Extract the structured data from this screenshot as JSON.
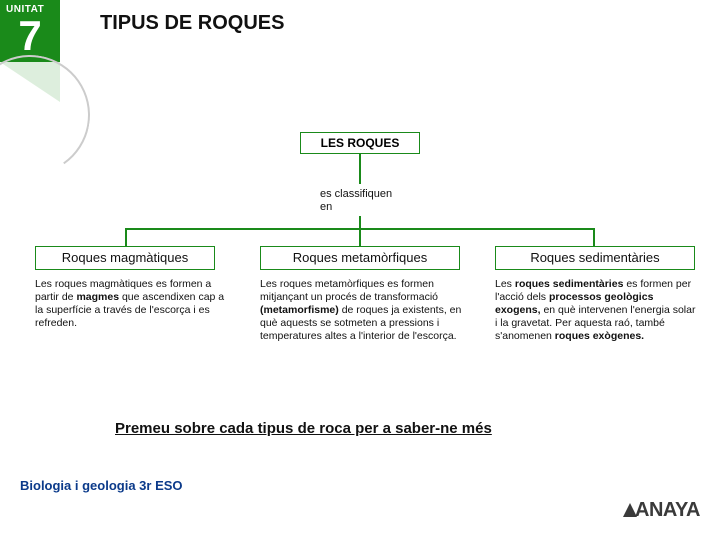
{
  "header": {
    "unit_label": "UNITAT",
    "unit_number": "7",
    "title": "TIPUS DE ROQUES"
  },
  "diagram": {
    "root_label": "LES ROQUES",
    "connector_text": "es classifiquen\nen",
    "colors": {
      "line": "#1a8a1a",
      "box_border": "#1a8a1a",
      "box_bg": "#ffffff"
    },
    "categories": [
      {
        "title": "Roques magmàtiques",
        "desc_html": "Les roques magmàtiques es formen a partir de <b>magmes</b> que ascendixen cap a la superfície a través de l'escorça i es refreden."
      },
      {
        "title": "Roques metamòrfiques",
        "desc_html": "Les roques metamòrfiques es formen mitjançant un procés de transformació <b>(metamorfisme)</b> de roques ja existents, en què aquests se sotmeten a pressions i temperatures altes a l'interior de l'escorça."
      },
      {
        "title": "Roques sedimentàries",
        "desc_html": "Les <b>roques sedimentàries</b> es formen per l'acció dels <b>processos geològics exogens,</b> en què intervenen l'energia solar i la gravetat. Per aquesta raó, també s'anomenen <b>roques exògenes.</b>"
      }
    ]
  },
  "footer": {
    "instruction": "Premeu sobre cada tipus de roca per a saber-ne més",
    "subject": "Biologia i geologia 3r ESO",
    "publisher": "ANAYA"
  }
}
